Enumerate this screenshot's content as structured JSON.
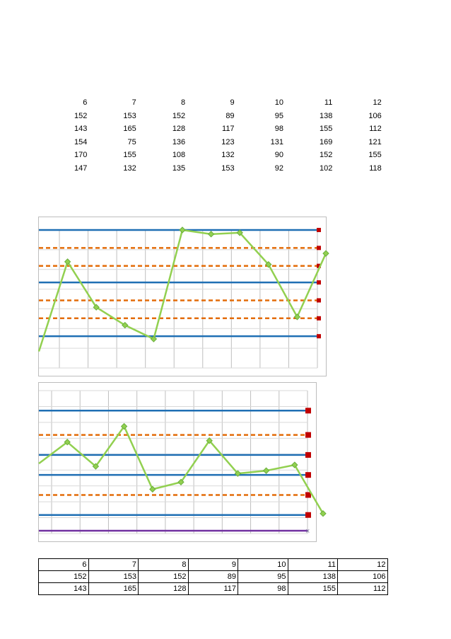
{
  "top_table": {
    "header": [
      "6",
      "7",
      "8",
      "9",
      "10",
      "11",
      "12"
    ],
    "rows": [
      [
        "152",
        "153",
        "152",
        "89",
        "95",
        "138",
        "106"
      ],
      [
        "143",
        "165",
        "128",
        "117",
        "98",
        "155",
        "112"
      ],
      [
        "154",
        "75",
        "136",
        "123",
        "131",
        "169",
        "121"
      ],
      [
        "170",
        "155",
        "108",
        "132",
        "90",
        "152",
        "155"
      ],
      [
        "147",
        "132",
        "135",
        "153",
        "92",
        "102",
        "118"
      ]
    ]
  },
  "bottom_table": {
    "header": [
      "6",
      "7",
      "8",
      "9",
      "10",
      "11",
      "12"
    ],
    "rows": [
      [
        "152",
        "153",
        "152",
        "89",
        "95",
        "138",
        "106"
      ],
      [
        "143",
        "165",
        "128",
        "117",
        "98",
        "155",
        "112"
      ]
    ]
  },
  "chart_data": [
    {
      "type": "line",
      "grid": true,
      "legend": "none",
      "colors": {
        "data": "#92d050",
        "data_marker": "#6aaf3d",
        "control_limits": "#1f6fb4",
        "sigma_limits": "#e36c09",
        "end_marker": "#c00000"
      },
      "limit_lines_px_reference": true,
      "series": [
        {
          "name": "",
          "role": "data",
          "values": [
            0.88,
            0.23,
            0.56,
            0.69,
            0.79,
            0.0,
            0.03,
            0.02,
            0.25,
            0.63,
            0.17
          ]
        },
        {
          "name": "",
          "role": "ucl",
          "values": [
            0.0
          ]
        },
        {
          "name": "",
          "role": "uwl2",
          "values": [
            0.13
          ]
        },
        {
          "name": "",
          "role": "uwl1",
          "values": [
            0.26
          ]
        },
        {
          "name": "",
          "role": "cl",
          "values": [
            0.38
          ]
        },
        {
          "name": "",
          "role": "lwl1",
          "values": [
            0.51
          ]
        },
        {
          "name": "",
          "role": "lwl2",
          "values": [
            0.64
          ]
        },
        {
          "name": "",
          "role": "lcl",
          "values": [
            0.77
          ]
        }
      ]
    },
    {
      "type": "line",
      "grid": true,
      "legend": "none",
      "colors": {
        "data": "#92d050",
        "data_marker": "#6aaf3d",
        "control_limits": "#1f6fb4",
        "sigma_limits": "#e36c09",
        "end_marker": "#c00000",
        "baseline": "#7030a0"
      },
      "series": [
        {
          "name": "",
          "role": "data",
          "values": [
            0.51,
            0.36,
            0.53,
            0.25,
            0.69,
            0.64,
            0.35,
            0.58,
            0.56,
            0.52,
            0.86
          ]
        },
        {
          "name": "",
          "role": "ucl",
          "values": [
            0.14
          ]
        },
        {
          "name": "",
          "role": "uwl",
          "values": [
            0.31
          ]
        },
        {
          "name": "",
          "role": "cl_upper",
          "values": [
            0.45
          ]
        },
        {
          "name": "",
          "role": "cl",
          "values": [
            0.59
          ]
        },
        {
          "name": "",
          "role": "lwl",
          "values": [
            0.73
          ]
        },
        {
          "name": "",
          "role": "lcl",
          "values": [
            0.87
          ]
        },
        {
          "name": "",
          "role": "baseline",
          "values": [
            0.98
          ]
        }
      ]
    }
  ]
}
